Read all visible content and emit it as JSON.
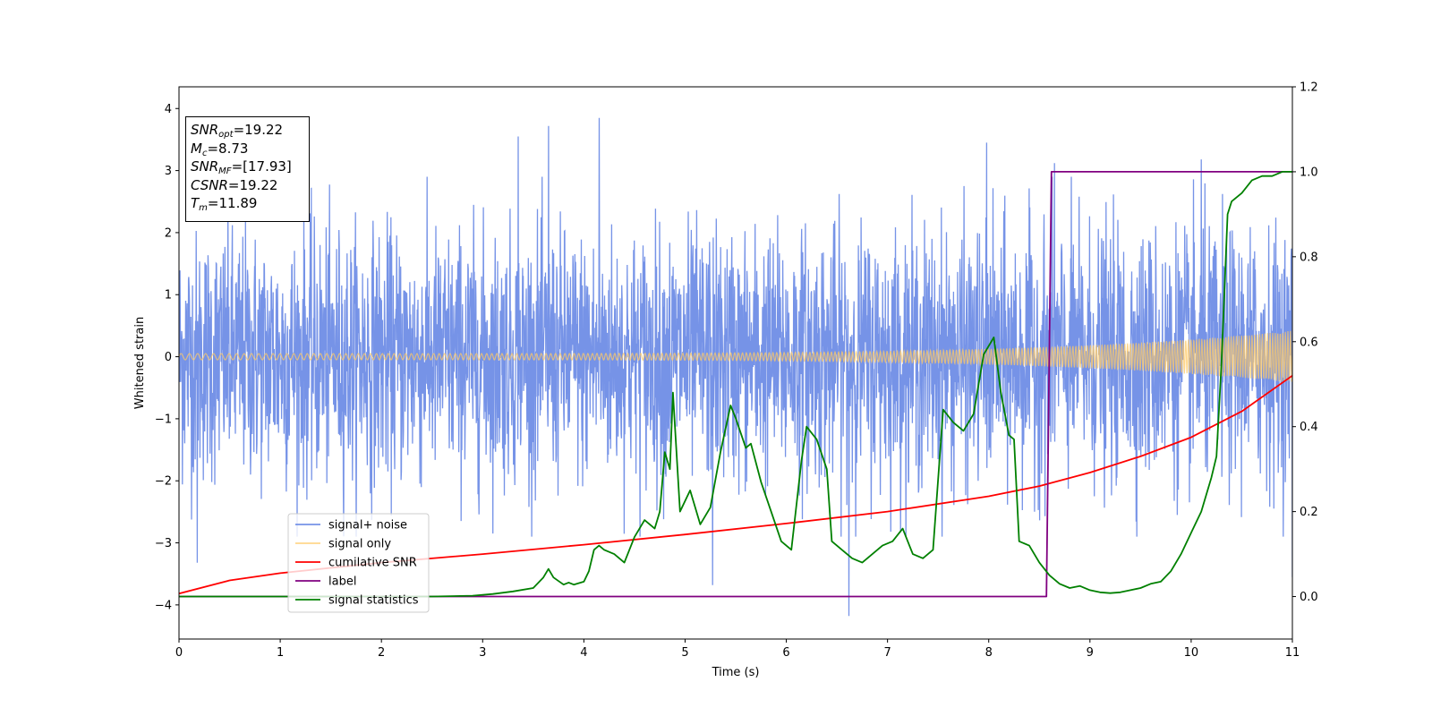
{
  "chart_data": {
    "type": "line",
    "xlabel": "Time (s)",
    "ylabel": "Whitened strain",
    "xlim": [
      0,
      11
    ],
    "ylim": [
      -4.55,
      4.35
    ],
    "y2lim": [
      -0.1,
      1.2
    ],
    "x_ticks": [
      "0",
      "1",
      "2",
      "3",
      "4",
      "5",
      "6",
      "7",
      "8",
      "9",
      "10",
      "11"
    ],
    "y_ticks": [
      "−4",
      "−3",
      "−2",
      "−1",
      "0",
      "1",
      "2",
      "3",
      "4"
    ],
    "y2_ticks": [
      "0.0",
      "0.2",
      "0.4",
      "0.6",
      "0.8",
      "1.0",
      "1.2"
    ],
    "grid": false,
    "legend_position": "lower-left",
    "series": [
      {
        "name": "signal+ noise",
        "axis": "left",
        "color": "#6f8de6",
        "style": "dense noise band, typical range about -2.7 to 2.7, peak excursions near 3.9 and -4.2",
        "peaks": [
          [
            4.15,
            3.85
          ],
          [
            3.65,
            3.72
          ],
          [
            3.35,
            3.55
          ],
          [
            7.98,
            3.45
          ],
          [
            8.65,
            3.12
          ],
          [
            10.1,
            3.18
          ],
          [
            6.62,
            -4.18
          ],
          [
            5.27,
            -3.68
          ],
          [
            0.18,
            -3.32
          ],
          [
            11.0,
            -3.55
          ]
        ]
      },
      {
        "name": "signal only",
        "axis": "left",
        "color": "#ffc966",
        "style": "chirp oscillation, amplitude growing from about 0.05 at t=0 to about 0.42 at t=11"
      },
      {
        "name": "cumilative SNR",
        "axis": "right",
        "color": "#ff0000",
        "x": [
          0,
          0.5,
          1,
          2,
          3,
          4,
          5,
          6,
          7,
          8,
          8.5,
          9,
          9.5,
          10,
          10.5,
          11
        ],
        "values": [
          0.007,
          0.038,
          0.055,
          0.08,
          0.1,
          0.122,
          0.146,
          0.172,
          0.2,
          0.236,
          0.26,
          0.292,
          0.33,
          0.375,
          0.436,
          0.52
        ]
      },
      {
        "name": "label",
        "axis": "right",
        "color": "#800080",
        "x": [
          0,
          8.57,
          8.62,
          11
        ],
        "values": [
          0,
          0,
          1,
          1
        ]
      },
      {
        "name": "signal statistics",
        "axis": "right",
        "color": "#008000",
        "x": [
          0,
          0.5,
          1,
          1.5,
          2,
          2.5,
          2.9,
          3.1,
          3.3,
          3.5,
          3.6,
          3.65,
          3.7,
          3.8,
          3.85,
          3.9,
          4.0,
          4.05,
          4.1,
          4.15,
          4.2,
          4.3,
          4.4,
          4.5,
          4.6,
          4.7,
          4.75,
          4.8,
          4.85,
          4.88,
          4.95,
          5.05,
          5.15,
          5.25,
          5.35,
          5.45,
          5.5,
          5.6,
          5.65,
          5.75,
          5.85,
          5.95,
          6.05,
          6.15,
          6.2,
          6.3,
          6.4,
          6.45,
          6.55,
          6.65,
          6.75,
          6.85,
          6.95,
          7.05,
          7.15,
          7.25,
          7.35,
          7.45,
          7.55,
          7.65,
          7.75,
          7.85,
          7.95,
          8.05,
          8.12,
          8.2,
          8.25,
          8.3,
          8.4,
          8.5,
          8.6,
          8.7,
          8.8,
          8.9,
          9.0,
          9.1,
          9.2,
          9.3,
          9.4,
          9.5,
          9.6,
          9.7,
          9.8,
          9.9,
          10.0,
          10.1,
          10.2,
          10.25,
          10.3,
          10.36,
          10.4,
          10.5,
          10.6,
          10.7,
          10.8,
          10.9,
          11.0
        ],
        "values": [
          0.0,
          0.0,
          0.0,
          0.0,
          0.0,
          0.0,
          0.002,
          0.006,
          0.012,
          0.02,
          0.045,
          0.065,
          0.045,
          0.028,
          0.033,
          0.028,
          0.035,
          0.06,
          0.11,
          0.12,
          0.11,
          0.1,
          0.08,
          0.14,
          0.18,
          0.16,
          0.2,
          0.34,
          0.3,
          0.48,
          0.2,
          0.25,
          0.17,
          0.21,
          0.34,
          0.45,
          0.42,
          0.35,
          0.36,
          0.27,
          0.2,
          0.13,
          0.11,
          0.32,
          0.4,
          0.37,
          0.3,
          0.13,
          0.11,
          0.09,
          0.08,
          0.1,
          0.12,
          0.13,
          0.16,
          0.1,
          0.09,
          0.11,
          0.44,
          0.41,
          0.39,
          0.43,
          0.57,
          0.61,
          0.48,
          0.38,
          0.37,
          0.13,
          0.12,
          0.08,
          0.05,
          0.03,
          0.02,
          0.025,
          0.015,
          0.01,
          0.008,
          0.01,
          0.015,
          0.02,
          0.03,
          0.035,
          0.06,
          0.1,
          0.15,
          0.2,
          0.28,
          0.33,
          0.55,
          0.9,
          0.93,
          0.95,
          0.98,
          0.99,
          0.99,
          1.0,
          1.0
        ]
      }
    ]
  },
  "stats_box": {
    "snr_opt_var": "SNR",
    "snr_opt_sub": "opt",
    "snr_opt_value": "=19.22",
    "mc_var": "M",
    "mc_sub": "c",
    "mc_value": "=8.73",
    "snr_mf_var": "SNR",
    "snr_mf_sub": "MF",
    "snr_mf_value": "=[17.93]",
    "csnr_var": "CSNR",
    "csnr_value": "=19.22",
    "tm_var": "T",
    "tm_sub": "m",
    "tm_value": "=11.89"
  }
}
